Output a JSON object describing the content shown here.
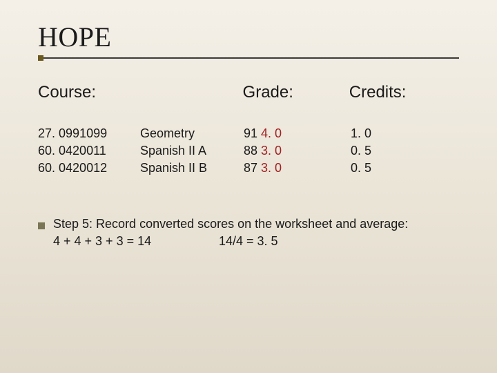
{
  "title": {
    "text": "HOPE",
    "fontsize": 40,
    "color": "#1a1a1a",
    "divider_color": "#3a3a3a",
    "divider_dot_color": "#6b5a1f"
  },
  "headers": {
    "course": "Course:",
    "grade": "Grade:",
    "credits": "Credits:",
    "fontsize": 24,
    "color": "#1a1a1a"
  },
  "table": {
    "rows": [
      {
        "code": "27. 0991099",
        "name": "Geometry",
        "grade_num": "91",
        "grade_pts": "4. 0",
        "credit": "1. 0"
      },
      {
        "code": "60. 0420011",
        "name": "Spanish II A",
        "grade_num": "88",
        "grade_pts": "3. 0",
        "credit": "0. 5"
      },
      {
        "code": "60. 0420012",
        "name": "Spanish II B",
        "grade_num": "87",
        "grade_pts": "3. 0",
        "credit": "0. 5"
      }
    ],
    "fontsize": 18,
    "text_color": "#1a1a1a",
    "grade_pts_color": "#a02020"
  },
  "step": {
    "bullet_color": "#7a7555",
    "text": "Step 5: Record converted scores on the worksheet and average:",
    "calc_left": "4 + 4 + 3 + 3 = 14",
    "calc_right": "14/4 = 3. 5",
    "fontsize": 18,
    "color": "#1a1a1a"
  },
  "layout": {
    "background_gradient_top": "#f4f0e8",
    "background_gradient_mid": "#ebe5d8",
    "background_gradient_bottom": "#e0d9ca"
  }
}
